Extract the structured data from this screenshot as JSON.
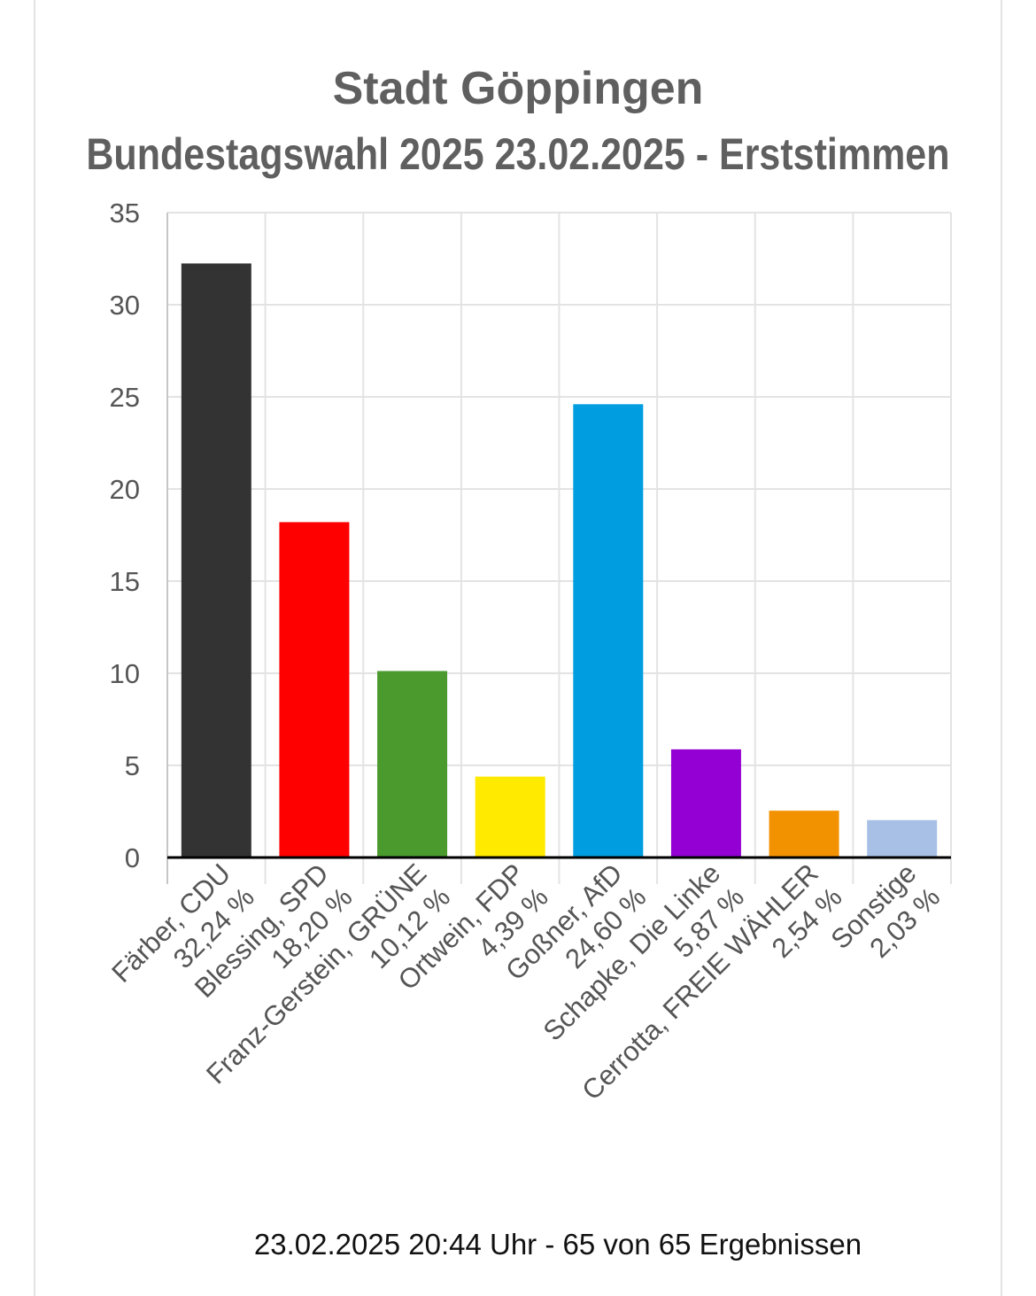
{
  "chart_data": {
    "type": "bar",
    "title": "Stadt Göppingen",
    "subtitle": "Bundestagswahl 2025 23.02.2025  - Erststimmen",
    "categories": [
      [
        "Färber, CDU",
        "32,24 %"
      ],
      [
        "Blessing, SPD",
        "18,20 %"
      ],
      [
        "Franz-Gerstein, GRÜNE",
        "10,12 %"
      ],
      [
        "Ortwein, FDP",
        "4,39 %"
      ],
      [
        "Goßner, AfD",
        "24,60 %"
      ],
      [
        "Schapke, Die Linke",
        "5,87 %"
      ],
      [
        "Cerrotta, FREIE WÄHLER",
        "2,54 %"
      ],
      [
        "Sonstige",
        "2,03 %"
      ]
    ],
    "values": [
      32.24,
      18.2,
      10.12,
      4.39,
      24.6,
      5.87,
      2.54,
      2.03
    ],
    "colors": [
      "#333333",
      "#ff0000",
      "#4a9a2e",
      "#ffea00",
      "#009ee0",
      "#9400d3",
      "#f39200",
      "#a8c0e6"
    ],
    "ylim": [
      0,
      35
    ],
    "yticks": [
      0,
      5,
      10,
      15,
      20,
      25,
      30,
      35
    ],
    "grid": true,
    "legend": "none",
    "footer": "23.02.2025 20:44 Uhr - 65 von 65 Ergebnissen"
  }
}
